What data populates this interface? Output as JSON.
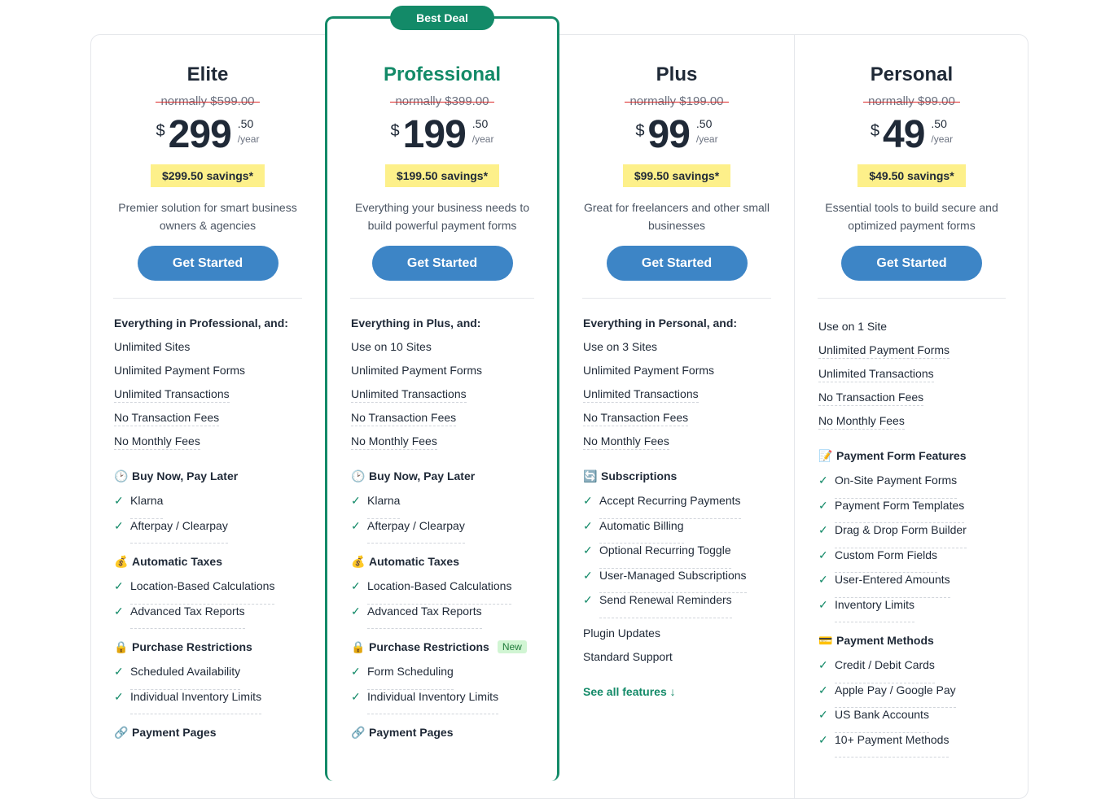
{
  "best_badge": "Best Deal",
  "plans": [
    {
      "name": "Elite",
      "normally": "normally $599.00",
      "currency": "$",
      "price": "299",
      "cents": ".50",
      "period": "/year",
      "savings": "$299.50 savings*",
      "description": "Premier solution for smart business owners & agencies",
      "cta": "Get Started",
      "intro": "Everything in Professional, and:",
      "items": [
        "Unlimited Sites",
        "Unlimited Payment Forms",
        "Unlimited Transactions",
        "No Transaction Fees",
        "No Monthly Fees"
      ],
      "groups": [
        {
          "icon": "🕑",
          "title": "Buy Now, Pay Later",
          "items": [
            "Klarna",
            "Afterpay / Clearpay"
          ]
        },
        {
          "icon": "💰",
          "title": "Automatic Taxes",
          "items": [
            "Location-Based Calculations",
            "Advanced Tax Reports"
          ]
        },
        {
          "icon": "🔒",
          "title": "Purchase Restrictions",
          "items": [
            "Scheduled Availability",
            "Individual Inventory Limits"
          ]
        },
        {
          "icon": "🔗",
          "title": "Payment Pages",
          "items": []
        }
      ]
    },
    {
      "name": "Professional",
      "normally": "normally $399.00",
      "currency": "$",
      "price": "199",
      "cents": ".50",
      "period": "/year",
      "savings": "$199.50 savings*",
      "description": "Everything your business needs to build powerful payment forms",
      "cta": "Get Started",
      "intro": "Everything in Plus, and:",
      "items": [
        "Use on 10 Sites",
        "Unlimited Payment Forms",
        "Unlimited Transactions",
        "No Transaction Fees",
        "No Monthly Fees"
      ],
      "groups": [
        {
          "icon": "🕑",
          "title": "Buy Now, Pay Later",
          "items": [
            "Klarna",
            "Afterpay / Clearpay"
          ]
        },
        {
          "icon": "💰",
          "title": "Automatic Taxes",
          "items": [
            "Location-Based Calculations",
            "Advanced Tax Reports"
          ]
        },
        {
          "icon": "🔒",
          "title": "Purchase Restrictions",
          "badge": "New",
          "items": [
            "Form Scheduling",
            "Individual Inventory Limits"
          ]
        },
        {
          "icon": "🔗",
          "title": "Payment Pages",
          "items": []
        }
      ]
    },
    {
      "name": "Plus",
      "normally": "normally $199.00",
      "currency": "$",
      "price": "99",
      "cents": ".50",
      "period": "/year",
      "savings": "$99.50 savings*",
      "description": "Great for freelancers and other small businesses",
      "cta": "Get Started",
      "intro": "Everything in Personal, and:",
      "items": [
        "Use on 3 Sites",
        "Unlimited Payment Forms",
        "Unlimited Transactions",
        "No Transaction Fees",
        "No Monthly Fees"
      ],
      "groups": [
        {
          "icon": "🔄",
          "title": "Subscriptions",
          "items": [
            "Accept Recurring Payments",
            "Automatic Billing",
            "Optional Recurring Toggle",
            "User-Managed Subscriptions",
            "Send Renewal Reminders"
          ]
        }
      ],
      "extra": [
        "Plugin Updates",
        "Standard Support"
      ],
      "see_all": "See all features ↓"
    },
    {
      "name": "Personal",
      "normally": "normally $99.00",
      "currency": "$",
      "price": "49",
      "cents": ".50",
      "period": "/year",
      "savings": "$49.50 savings*",
      "description": "Essential tools to build secure and optimized payment forms",
      "cta": "Get Started",
      "items": [
        "Use on 1 Site",
        "Unlimited Payment Forms",
        "Unlimited Transactions",
        "No Transaction Fees",
        "No Monthly Fees"
      ],
      "groups": [
        {
          "icon": "📝",
          "title": "Payment Form Features",
          "items": [
            "On-Site Payment Forms",
            "Payment Form Templates",
            "Drag & Drop Form Builder",
            "Custom Form Fields",
            "User-Entered Amounts",
            "Inventory Limits"
          ]
        },
        {
          "icon": "💳",
          "title": "Payment Methods",
          "items": [
            "Credit / Debit Cards",
            "Apple Pay / Google Pay",
            "US Bank Accounts",
            "10+ Payment Methods"
          ]
        }
      ]
    }
  ]
}
